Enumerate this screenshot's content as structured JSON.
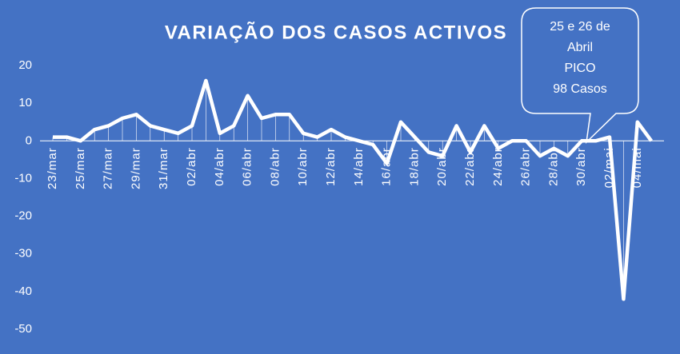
{
  "chart_data": {
    "type": "line",
    "title": "VARIAÇÃO DOS CASOS ACTIVOS",
    "categories": [
      "23/mar",
      null,
      "25/mar",
      null,
      "27/mar",
      null,
      "29/mar",
      null,
      "31/mar",
      null,
      "02/abr",
      null,
      "04/abr",
      null,
      "06/abr",
      null,
      "08/abr",
      null,
      "10/abr",
      null,
      "12/abr",
      null,
      "14/abr",
      null,
      "16/abr",
      null,
      "18/abr",
      null,
      "20/abr",
      null,
      "22/abr",
      null,
      "24/abr",
      null,
      "26/abr",
      null,
      "28/abr",
      null,
      "30/abr",
      null,
      "02/mai",
      null,
      "04/mai",
      null
    ],
    "values": [
      1,
      1,
      0,
      3,
      4,
      6,
      7,
      4,
      3,
      2,
      4,
      16,
      2,
      4,
      12,
      6,
      7,
      7,
      2,
      1,
      3,
      1,
      0,
      -1,
      -6,
      5,
      1,
      -3,
      -4,
      4,
      -3,
      4,
      -2,
      0,
      0,
      -4,
      -2,
      -4,
      0,
      0,
      1,
      -42,
      5,
      0
    ],
    "color": "#ffffff",
    "ylim": [
      -50,
      20
    ],
    "yticks": [
      -50,
      -40,
      -30,
      -20,
      -10,
      0,
      10,
      20
    ],
    "drop_lines": true,
    "annotation": [
      "25 e 26 de",
      "Abril",
      "PICO",
      "98 Casos"
    ]
  }
}
